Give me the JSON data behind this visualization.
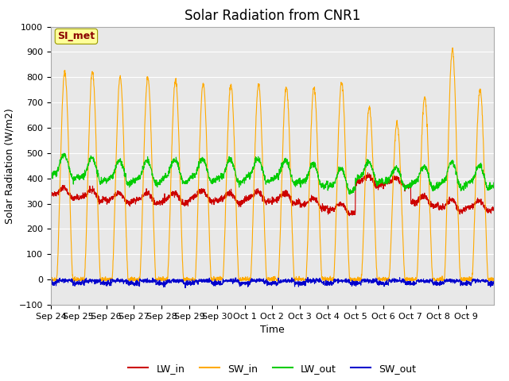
{
  "title": "Solar Radiation from CNR1",
  "xlabel": "Time",
  "ylabel": "Solar Radiation (W/m2)",
  "ylim": [
    -100,
    1000
  ],
  "annotation_text": "SI_met",
  "x_tick_labels": [
    "Sep 24",
    "Sep 25",
    "Sep 26",
    "Sep 27",
    "Sep 28",
    "Sep 29",
    "Sep 30",
    "Oct 1",
    "Oct 2",
    "Oct 3",
    "Oct 4",
    "Oct 5",
    "Oct 6",
    "Oct 7",
    "Oct 8",
    "Oct 9"
  ],
  "line_colors": {
    "LW_in": "#cc0000",
    "SW_in": "#ffaa00",
    "LW_out": "#00cc00",
    "SW_out": "#0000cc"
  },
  "fig_facecolor": "#ffffff",
  "plot_bg_color": "#e8e8e8",
  "grid_color": "#ffffff",
  "title_fontsize": 12,
  "axis_label_fontsize": 9,
  "tick_fontsize": 8,
  "legend_fontsize": 9,
  "num_days": 16,
  "points_per_day": 144,
  "peak_heights": [
    820,
    820,
    800,
    800,
    790,
    775,
    770,
    770,
    760,
    760,
    780,
    680,
    620,
    720,
    910,
    750
  ],
  "base_lw_in": [
    330,
    320,
    310,
    310,
    310,
    320,
    310,
    315,
    310,
    290,
    270,
    380,
    375,
    300,
    280,
    280
  ],
  "base_lw_out": [
    410,
    400,
    390,
    390,
    395,
    400,
    395,
    400,
    395,
    380,
    360,
    395,
    380,
    375,
    375,
    375
  ]
}
